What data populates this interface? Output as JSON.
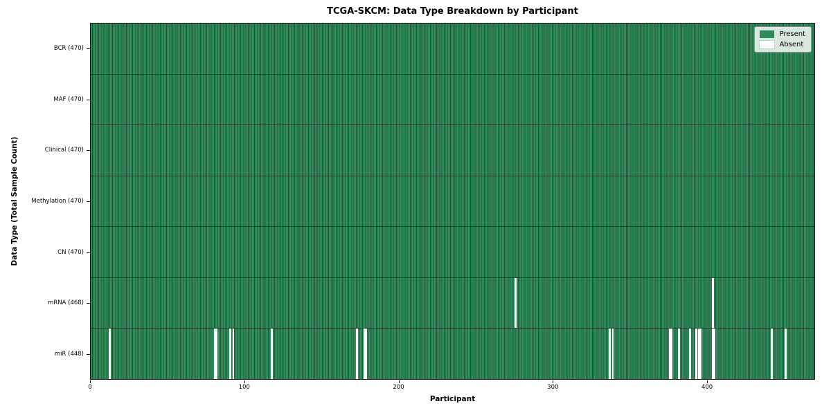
{
  "chart_data": {
    "type": "heatmap",
    "title": "TCGA-SKCM: Data Type Breakdown by Participant",
    "xlabel": "Participant",
    "ylabel": "Data Type (Total Sample Count)",
    "n_participants": 470,
    "x_range": [
      0,
      470
    ],
    "x_ticks": [
      0,
      100,
      200,
      300,
      400
    ],
    "grid": "off",
    "legend_position": "upper right",
    "rows": [
      {
        "label": "BCR (470)",
        "data_type": "BCR",
        "present_count": 470,
        "absent_participants": []
      },
      {
        "label": "MAF (470)",
        "data_type": "MAF",
        "present_count": 470,
        "absent_participants": []
      },
      {
        "label": "Clinical (470)",
        "data_type": "Clinical",
        "present_count": 470,
        "absent_participants": []
      },
      {
        "label": "Methylation (470)",
        "data_type": "Methylation",
        "present_count": 470,
        "absent_participants": []
      },
      {
        "label": "CN (470)",
        "data_type": "CN",
        "present_count": 470,
        "absent_participants": []
      },
      {
        "label": "mRNA (468)",
        "data_type": "mRNA",
        "present_count": 468,
        "absent_participants": [
          275,
          403
        ]
      },
      {
        "label": "miR (448)",
        "data_type": "miR",
        "present_count": 448,
        "absent_participants": [
          12,
          80,
          81,
          90,
          92,
          117,
          172,
          177,
          178,
          336,
          338,
          375,
          376,
          381,
          388,
          392,
          394,
          395,
          403,
          404,
          441,
          450
        ]
      }
    ],
    "legend": [
      {
        "label": "Present",
        "color": "#2e8b57"
      },
      {
        "label": "Absent",
        "color": "#ffffff"
      }
    ],
    "colors": {
      "present": "#2e8b57",
      "present_edge": "#195635",
      "absent": "#ffffff",
      "axes_edge": "#161616"
    }
  }
}
